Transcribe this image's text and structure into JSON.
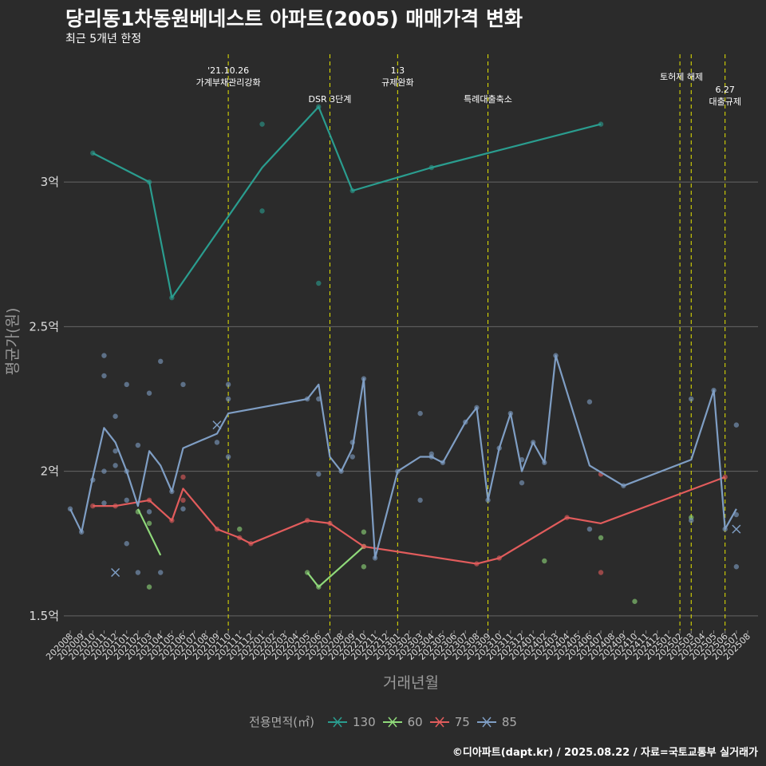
{
  "header": {
    "title": "당리동1차동원베네스트 아파트(2005) 매매가격 변화",
    "subtitle": "최근 5개년 한정"
  },
  "caption": "©디아파트(dapt.kr) / 2025.08.22 / 자료=국토교통부 실거래가",
  "colors": {
    "background": "#2b2b2b",
    "grid": "#666666",
    "event_line": "#e6e600",
    "s130": "#2a9d8f",
    "s60": "#8fd97a",
    "s75": "#e25c5c",
    "s85": "#7f9ec4"
  },
  "chart_data": {
    "type": "line",
    "xlabel": "거래년월",
    "ylabel": "평균가(원)",
    "ylim": [
      1.45,
      3.45
    ],
    "yticks": [
      {
        "value": 1.5,
        "label": "1.5억"
      },
      {
        "value": 2.0,
        "label": "2억"
      },
      {
        "value": 2.5,
        "label": "2.5억"
      },
      {
        "value": 3.0,
        "label": "3억"
      }
    ],
    "x_categories": [
      "202008",
      "202009",
      "202010",
      "202011",
      "202012",
      "202101",
      "202102",
      "202103",
      "202104",
      "202105",
      "202106",
      "202107",
      "202108",
      "202109",
      "202110",
      "202111",
      "202112",
      "202201",
      "202202",
      "202203",
      "202204",
      "202205",
      "202206",
      "202207",
      "202208",
      "202209",
      "202210",
      "202211",
      "202212",
      "202301",
      "202302",
      "202303",
      "202304",
      "202305",
      "202306",
      "202307",
      "202308",
      "202309",
      "202310",
      "202311",
      "202312",
      "202401",
      "202402",
      "202403",
      "202404",
      "202405",
      "202406",
      "202407",
      "202408",
      "202409",
      "202410",
      "202411",
      "202412",
      "202501",
      "202502",
      "202503",
      "202504",
      "202505",
      "202506",
      "202507",
      "202508"
    ],
    "legend_title": "전용면적(㎡)",
    "grid": true,
    "events": [
      {
        "x": "202110",
        "label": "'21.10.26\n가계부채관리강화",
        "row": 0
      },
      {
        "x": "202207",
        "label": "DSR 3단계",
        "row": 2
      },
      {
        "x": "202301",
        "label": "1.3\n규제완화",
        "row": 0
      },
      {
        "x": "202309",
        "label": "특례대출축소",
        "row": 2
      },
      {
        "x": "202502",
        "label": "토허제 해제",
        "row": 1,
        "align": "end"
      },
      {
        "x": "202503",
        "label": "",
        "row": 1
      },
      {
        "x": "202506",
        "label": "6.27\n대출규제",
        "row": 1.5
      }
    ],
    "series": [
      {
        "name": "130",
        "color_key": "s130",
        "line": [
          [
            "202010",
            3.1
          ],
          [
            "202103",
            3.0
          ],
          [
            "202105",
            2.6
          ],
          [
            "202201",
            3.05
          ],
          [
            "202206",
            3.26
          ],
          [
            "202209",
            2.97
          ],
          [
            "202304",
            3.05
          ],
          [
            "202407",
            3.2
          ]
        ],
        "points": [
          [
            "202010",
            3.1
          ],
          [
            "202103",
            3.0
          ],
          [
            "202105",
            2.6
          ],
          [
            "202201",
            3.2
          ],
          [
            "202201",
            2.9
          ],
          [
            "202206",
            3.26
          ],
          [
            "202206",
            2.65
          ],
          [
            "202209",
            2.97
          ],
          [
            "202304",
            3.05
          ],
          [
            "202407",
            3.2
          ]
        ]
      },
      {
        "name": "60",
        "color_key": "s60",
        "line": [
          [
            "202102",
            1.87
          ],
          [
            "202104",
            1.71
          ]
        ],
        "line2": [
          [
            "202205",
            1.65
          ],
          [
            "202206",
            1.6
          ],
          [
            "202210",
            1.74
          ]
        ],
        "points": [
          [
            "202102",
            1.86
          ],
          [
            "202103",
            1.82
          ],
          [
            "202103",
            1.6
          ],
          [
            "202111",
            1.8
          ],
          [
            "202205",
            1.65
          ],
          [
            "202206",
            1.6
          ],
          [
            "202210",
            1.79
          ],
          [
            "202210",
            1.67
          ],
          [
            "202210",
            1.74
          ],
          [
            "202402",
            1.69
          ],
          [
            "202407",
            1.77
          ],
          [
            "202410",
            1.55
          ],
          [
            "202503",
            1.84
          ]
        ]
      },
      {
        "name": "75",
        "color_key": "s75",
        "line": [
          [
            "202010",
            1.88
          ],
          [
            "202012",
            1.88
          ],
          [
            "202103",
            1.9
          ],
          [
            "202105",
            1.83
          ],
          [
            "202106",
            1.94
          ],
          [
            "202109",
            1.8
          ],
          [
            "202111",
            1.77
          ],
          [
            "202112",
            1.75
          ],
          [
            "202205",
            1.83
          ],
          [
            "202207",
            1.82
          ],
          [
            "202210",
            1.74
          ],
          [
            "202308",
            1.68
          ],
          [
            "202310",
            1.7
          ],
          [
            "202404",
            1.84
          ],
          [
            "202407",
            1.82
          ],
          [
            "202506",
            1.98
          ]
        ],
        "points": [
          [
            "202010",
            1.88
          ],
          [
            "202012",
            1.88
          ],
          [
            "202103",
            1.9
          ],
          [
            "202105",
            1.83
          ],
          [
            "202106",
            1.98
          ],
          [
            "202106",
            1.9
          ],
          [
            "202109",
            1.8
          ],
          [
            "202111",
            1.77
          ],
          [
            "202112",
            1.75
          ],
          [
            "202205",
            1.83
          ],
          [
            "202207",
            1.82
          ],
          [
            "202210",
            1.74
          ],
          [
            "202308",
            1.68
          ],
          [
            "202310",
            1.7
          ],
          [
            "202404",
            1.84
          ],
          [
            "202407",
            1.99
          ],
          [
            "202407",
            1.65
          ],
          [
            "202506",
            1.98
          ]
        ]
      },
      {
        "name": "85",
        "color_key": "s85",
        "line": [
          [
            "202008",
            1.87
          ],
          [
            "202009",
            1.79
          ],
          [
            "202010",
            1.98
          ],
          [
            "202011",
            2.15
          ],
          [
            "202012",
            2.1
          ],
          [
            "202101",
            2.0
          ],
          [
            "202102",
            1.88
          ],
          [
            "202103",
            2.07
          ],
          [
            "202104",
            2.02
          ],
          [
            "202105",
            1.93
          ],
          [
            "202106",
            2.08
          ],
          [
            "202109",
            2.13
          ],
          [
            "202110",
            2.2
          ],
          [
            "202205",
            2.25
          ],
          [
            "202206",
            2.3
          ],
          [
            "202207",
            2.05
          ],
          [
            "202208",
            2.0
          ],
          [
            "202209",
            2.08
          ],
          [
            "202210",
            2.32
          ],
          [
            "202211",
            1.7
          ],
          [
            "202301",
            2.0
          ],
          [
            "202303",
            2.05
          ],
          [
            "202304",
            2.05
          ],
          [
            "202305",
            2.03
          ],
          [
            "202307",
            2.17
          ],
          [
            "202308",
            2.22
          ],
          [
            "202309",
            1.9
          ],
          [
            "202310",
            2.08
          ],
          [
            "202311",
            2.2
          ],
          [
            "202312",
            2.0
          ],
          [
            "202401",
            2.1
          ],
          [
            "202402",
            2.03
          ],
          [
            "202403",
            2.4
          ],
          [
            "202406",
            2.02
          ],
          [
            "202409",
            1.95
          ],
          [
            "202503",
            2.04
          ],
          [
            "202505",
            2.28
          ],
          [
            "202506",
            1.8
          ],
          [
            "202507",
            1.87
          ]
        ],
        "points": [
          [
            "202008",
            1.87
          ],
          [
            "202009",
            1.79
          ],
          [
            "202010",
            1.97
          ],
          [
            "202011",
            2.4
          ],
          [
            "202011",
            2.33
          ],
          [
            "202011",
            2.0
          ],
          [
            "202011",
            1.89
          ],
          [
            "202012",
            2.19
          ],
          [
            "202012",
            2.07
          ],
          [
            "202012",
            2.02
          ],
          [
            "202101",
            2.3
          ],
          [
            "202101",
            2.0
          ],
          [
            "202101",
            1.9
          ],
          [
            "202101",
            1.75
          ],
          [
            "202102",
            2.09
          ],
          [
            "202102",
            1.65
          ],
          [
            "202103",
            2.27
          ],
          [
            "202103",
            1.86
          ],
          [
            "202104",
            2.38
          ],
          [
            "202104",
            1.65
          ],
          [
            "202105",
            1.93
          ],
          [
            "202106",
            2.3
          ],
          [
            "202106",
            1.87
          ],
          [
            "202109",
            2.1
          ],
          [
            "202110",
            2.3
          ],
          [
            "202110",
            2.25
          ],
          [
            "202110",
            2.05
          ],
          [
            "202205",
            2.25
          ],
          [
            "202206",
            2.25
          ],
          [
            "202206",
            1.99
          ],
          [
            "202208",
            2.0
          ],
          [
            "202209",
            2.1
          ],
          [
            "202209",
            2.05
          ],
          [
            "202210",
            2.32
          ],
          [
            "202211",
            1.7
          ],
          [
            "202301",
            2.0
          ],
          [
            "202303",
            2.2
          ],
          [
            "202303",
            1.9
          ],
          [
            "202304",
            2.06
          ],
          [
            "202304",
            2.05
          ],
          [
            "202305",
            2.03
          ],
          [
            "202307",
            2.17
          ],
          [
            "202308",
            2.22
          ],
          [
            "202309",
            1.9
          ],
          [
            "202310",
            2.08
          ],
          [
            "202311",
            2.2
          ],
          [
            "202312",
            2.04
          ],
          [
            "202312",
            1.96
          ],
          [
            "202401",
            2.1
          ],
          [
            "202402",
            2.03
          ],
          [
            "202403",
            2.4
          ],
          [
            "202406",
            2.24
          ],
          [
            "202406",
            1.8
          ],
          [
            "202409",
            1.95
          ],
          [
            "202503",
            2.25
          ],
          [
            "202503",
            1.83
          ],
          [
            "202505",
            2.28
          ],
          [
            "202506",
            1.8
          ],
          [
            "202507",
            2.16
          ],
          [
            "202507",
            1.85
          ],
          [
            "202507",
            1.67
          ]
        ],
        "crosses": [
          [
            "202012",
            1.65
          ],
          [
            "202109",
            2.16
          ],
          [
            "202507",
            1.8
          ]
        ]
      }
    ]
  }
}
